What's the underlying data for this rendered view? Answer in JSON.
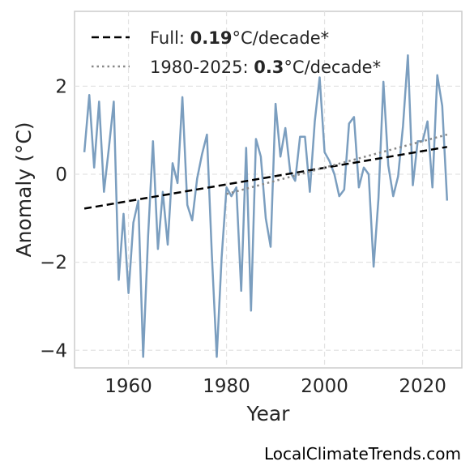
{
  "chart_data": {
    "type": "line",
    "title": "",
    "xlabel": "Year",
    "ylabel": "Anomaly (°C)",
    "xlim": [
      1949,
      2028
    ],
    "ylim": [
      -4.4,
      3.7
    ],
    "xticks": [
      1960,
      1980,
      2000,
      2020
    ],
    "yticks": [
      -4,
      -2,
      0,
      2
    ],
    "ytick_labels": [
      "−4",
      "−2",
      "0",
      "2"
    ],
    "grid": true,
    "legend_position": "top-left",
    "series": [
      {
        "kind": "line",
        "color": "#7b9ebf",
        "x": [
          1951,
          1952,
          1953,
          1954,
          1955,
          1956,
          1957,
          1958,
          1959,
          1960,
          1961,
          1962,
          1963,
          1964,
          1965,
          1966,
          1967,
          1968,
          1969,
          1970,
          1971,
          1972,
          1973,
          1974,
          1975,
          1976,
          1977,
          1978,
          1979,
          1980,
          1981,
          1982,
          1983,
          1984,
          1985,
          1986,
          1987,
          1988,
          1989,
          1990,
          1991,
          1992,
          1993,
          1994,
          1995,
          1996,
          1997,
          1998,
          1999,
          2000,
          2001,
          2002,
          2003,
          2004,
          2005,
          2006,
          2007,
          2008,
          2009,
          2010,
          2011,
          2012,
          2013,
          2014,
          2015,
          2016,
          2017,
          2018,
          2019,
          2020,
          2021,
          2022,
          2023,
          2024,
          2025
        ],
        "y": [
          0.5,
          1.8,
          0.15,
          1.65,
          -0.4,
          0.6,
          1.65,
          -2.4,
          -0.9,
          -2.7,
          -1.1,
          -0.6,
          -4.15,
          -1.4,
          0.75,
          -1.7,
          -0.4,
          -1.6,
          0.25,
          -0.2,
          1.75,
          -0.7,
          -1.05,
          -0.1,
          0.45,
          0.9,
          -1.8,
          -4.15,
          -1.9,
          -0.3,
          -0.5,
          -0.3,
          -2.65,
          0.6,
          -3.1,
          0.8,
          0.4,
          -1.0,
          -1.65,
          1.6,
          0.4,
          1.05,
          0.05,
          -0.15,
          0.85,
          0.85,
          -0.4,
          1.2,
          2.2,
          0.5,
          0.3,
          0.0,
          -0.5,
          -0.35,
          1.15,
          1.3,
          -0.3,
          0.15,
          0.0,
          -2.1,
          -0.55,
          2.1,
          0.2,
          -0.5,
          -0.05,
          1.1,
          2.7,
          -0.25,
          0.75,
          0.75,
          1.2,
          -0.3,
          2.25,
          1.55,
          -0.6
        ]
      },
      {
        "kind": "trend",
        "name": "Full: 0.19°C/decade*",
        "style": "dashed",
        "color": "#000000",
        "x": [
          1951,
          2025
        ],
        "y": [
          -0.78,
          0.62
        ]
      },
      {
        "kind": "trend",
        "name": "1980-2025: 0.3°C/decade*",
        "style": "dotted",
        "color": "#888888",
        "x": [
          1980,
          2025
        ],
        "y": [
          -0.45,
          0.9
        ]
      }
    ]
  },
  "legend": [
    {
      "prefix": "Full: ",
      "value": "0.19",
      "suffix": "°C/decade*"
    },
    {
      "prefix": "1980-2025: ",
      "value": "0.3",
      "suffix": "°C/decade*"
    }
  ],
  "credit": "LocalClimateTrends.com"
}
